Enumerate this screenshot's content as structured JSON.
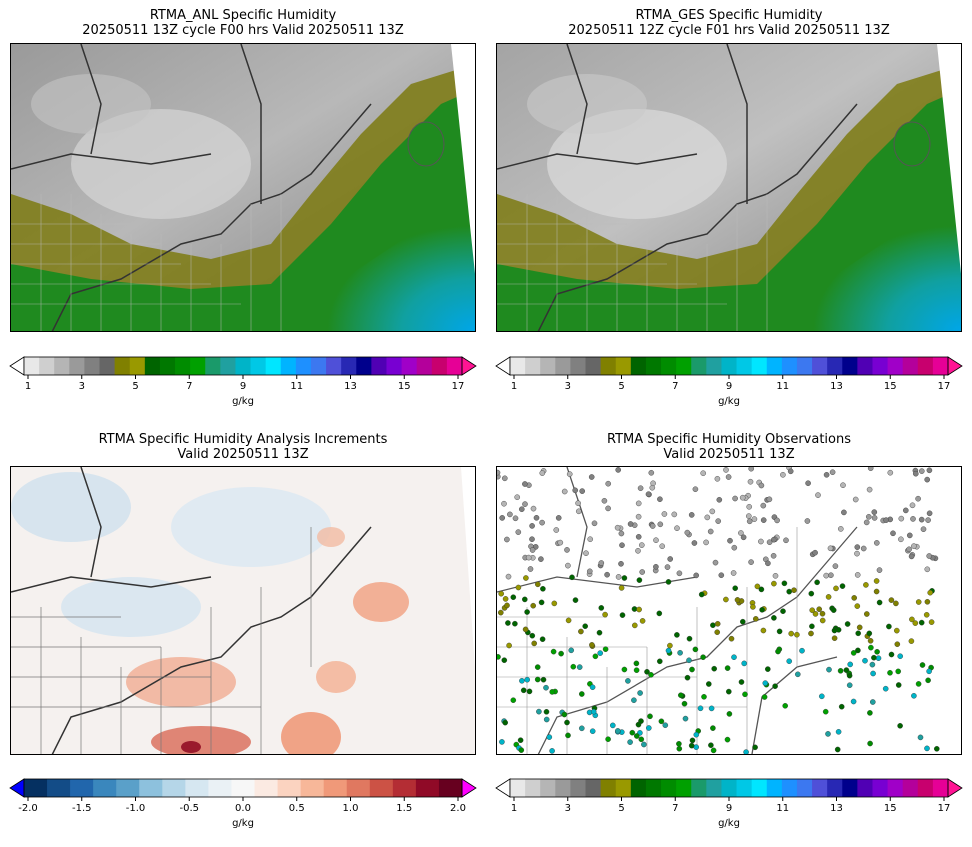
{
  "panels": [
    {
      "id": "anl",
      "title_line1": "RTMA_ANL Specific Humidity",
      "title_line2": "20250511 13Z cycle F00 hrs Valid 20250511 13Z"
    },
    {
      "id": "ges",
      "title_line1": "RTMA_GES Specific Humidity",
      "title_line2": "20250511 12Z cycle F01 hrs Valid 20250511 13Z"
    },
    {
      "id": "inc",
      "title_line1": "RTMA Specific Humidity Analysis Increments",
      "title_line2": "Valid 20250511 13Z"
    },
    {
      "id": "obs",
      "title_line1": "RTMA Specific Humidity Observations",
      "title_line2": "Valid 20250511 13Z"
    }
  ],
  "colorbars": {
    "humidity": {
      "unit": "g/kg",
      "ticks": [
        "1",
        "3",
        "5",
        "7",
        "9",
        "11",
        "13",
        "15",
        "17"
      ],
      "colors": [
        "#ffffff",
        "#e8e8e8",
        "#cfcfcf",
        "#b5b5b5",
        "#9a9a9a",
        "#808080",
        "#666666",
        "#808000",
        "#999900",
        "#006400",
        "#007800",
        "#008c00",
        "#00a000",
        "#1a9a6a",
        "#20a0a0",
        "#00b4c8",
        "#00c8e6",
        "#00e6ff",
        "#00b4ff",
        "#1e90ff",
        "#3c78f0",
        "#4f50d8",
        "#2828b4",
        "#00008c",
        "#5000b4",
        "#7800d2",
        "#a000c8",
        "#b4009b",
        "#c8006e",
        "#e60096",
        "#ff1493"
      ]
    },
    "increment": {
      "unit": "g/kg",
      "ticks": [
        "-2.0",
        "-1.5",
        "-1.0",
        "-0.5",
        "0.0",
        "0.5",
        "1.0",
        "1.5",
        "2.0"
      ],
      "colors": [
        "#0000ff",
        "#053061",
        "#134c87",
        "#2166ac",
        "#3a87bd",
        "#5aa0c9",
        "#8dc1dd",
        "#b5d6e8",
        "#d6e7f1",
        "#eaf1f5",
        "#f7f7f7",
        "#fbeae2",
        "#fbd3c0",
        "#f7b799",
        "#f09979",
        "#e07860",
        "#cc5245",
        "#b42d34",
        "#900a27",
        "#67001f",
        "#ff00ff"
      ]
    }
  },
  "colors": {
    "land_gray": "#8c8c8c",
    "sea_green": "#1f8a1f",
    "ocean_blue": "#00a6e0",
    "positive": "#e67a5c",
    "negative": "#9cc6e4"
  }
}
